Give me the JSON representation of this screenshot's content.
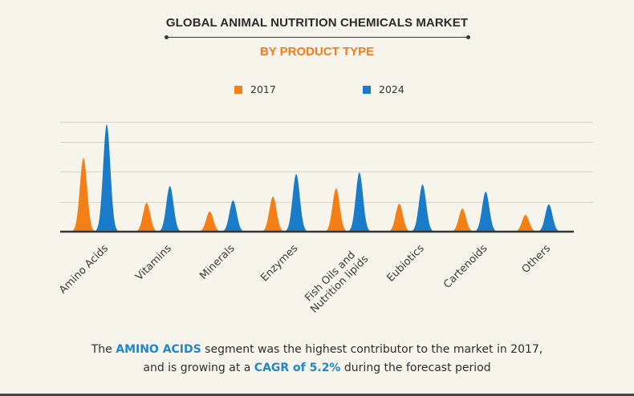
{
  "header": {
    "title": "GLOBAL ANIMAL NUTRITION CHEMICALS MARKET",
    "subtitle": "BY PRODUCT TYPE"
  },
  "colors": {
    "series_2017": "#f57f17",
    "series_2024": "#1a7cc8",
    "highlight": "#1f86c9",
    "subtitle": "#f47a20"
  },
  "chart_data": {
    "type": "area",
    "title": "GLOBAL ANIMAL NUTRITION CHEMICALS MARKET",
    "subtitle": "BY PRODUCT TYPE",
    "xlabel": "",
    "ylabel": "",
    "ylim": [
      0,
      3.7
    ],
    "grid": true,
    "gridlines": [
      1,
      2,
      3,
      3.65
    ],
    "legend_position": "top-center",
    "categories": [
      "Amino Acids",
      "Vitamins",
      "Minerals",
      "Enzymes",
      "Fish Oils and Nutrition lipids",
      "Eubiotics",
      "Cartenoids",
      "Others"
    ],
    "category_lines": [
      [
        "Amino Acids"
      ],
      [
        "Vitamins"
      ],
      [
        "Minerals"
      ],
      [
        "Enzymes"
      ],
      [
        "Fish Oils and",
        "Nutrition lipids"
      ],
      [
        "Eubiotics"
      ],
      [
        "Cartenoids"
      ],
      [
        "Others"
      ]
    ],
    "series": [
      {
        "name": "2017",
        "values": [
          2.45,
          0.96,
          0.67,
          1.17,
          1.44,
          0.93,
          0.77,
          0.56
        ]
      },
      {
        "name": "2024",
        "values": [
          3.57,
          1.52,
          1.04,
          1.92,
          1.97,
          1.57,
          1.33,
          0.91
        ]
      }
    ]
  },
  "legend": [
    {
      "label": "2017"
    },
    {
      "label": "2024"
    }
  ],
  "caption": {
    "line1_prefix": "The",
    "line1_highlight": "AMINO ACIDS",
    "line1_suffix": " segment was the highest contributor to the market in 2017,",
    "line2_prefix": "and is growing at a ",
    "line2_highlight": "CAGR of 5.2%",
    "line2_suffix": " during the forecast period"
  }
}
